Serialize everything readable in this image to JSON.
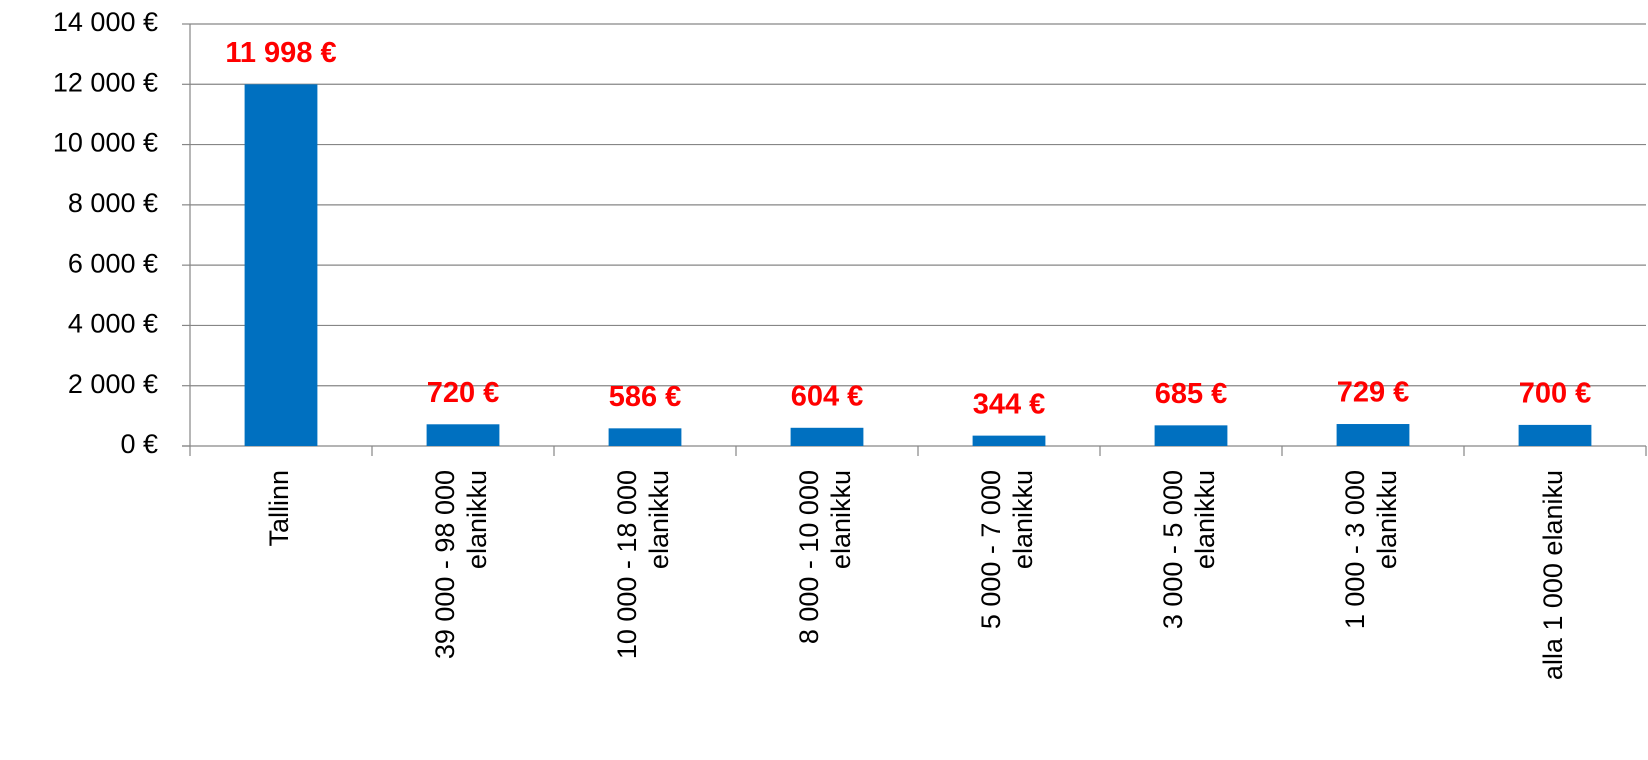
{
  "chart_data": {
    "type": "bar",
    "categories": [
      "Tallinn",
      "39 000 - 98 000\nelanikku",
      "10 000 - 18 000\nelanikku",
      "8 000 - 10 000\nelanikku",
      "5 000 - 7 000\nelanikku",
      "3 000 - 5 000\nelanikku",
      "1 000 - 3 000\nelanikku",
      "alla 1 000 elaniku"
    ],
    "values": [
      11998,
      720,
      586,
      604,
      344,
      685,
      729,
      700
    ],
    "value_labels": [
      "11 998 €",
      "720 €",
      "586 €",
      "604 €",
      "344 €",
      "685 €",
      "729 €",
      "700 €"
    ],
    "color": "#0070c0",
    "label_color": "#ff0000",
    "ylim": [
      0,
      14000
    ],
    "yticks": [
      {
        "value": 0,
        "label": "0 €"
      },
      {
        "value": 2000,
        "label": "2 000 €"
      },
      {
        "value": 4000,
        "label": "4 000 €"
      },
      {
        "value": 6000,
        "label": "6 000 €"
      },
      {
        "value": 8000,
        "label": "8 000 €"
      },
      {
        "value": 10000,
        "label": "10 000 €"
      },
      {
        "value": 12000,
        "label": "12 000 €"
      },
      {
        "value": 14000,
        "label": "14 000 €"
      }
    ],
    "grid": true
  }
}
